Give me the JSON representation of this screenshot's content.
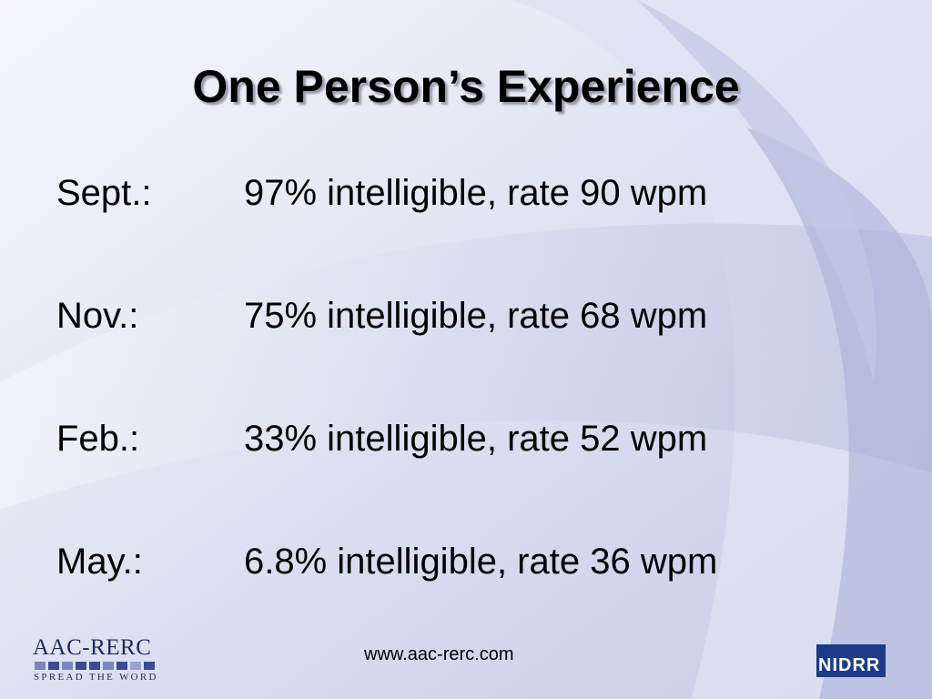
{
  "header": {
    "title": "One Person’s Experience"
  },
  "rows": [
    {
      "label": "Sept.:",
      "text": "97% intelligible, rate 90 wpm"
    },
    {
      "label": "Nov.:",
      "text": "75% intelligible, rate 68 wpm"
    },
    {
      "label": "Feb.:",
      "text": "33% intelligible, rate 52 wpm"
    },
    {
      "label": "May.:",
      "text": "6.8% intelligible, rate 36 wpm"
    }
  ],
  "footer": {
    "url": "www.aac-rerc.com",
    "logo_left": "AAC-RERC",
    "logo_left_tagline": "SPREAD THE WORD",
    "logo_right": "NIDRR"
  }
}
